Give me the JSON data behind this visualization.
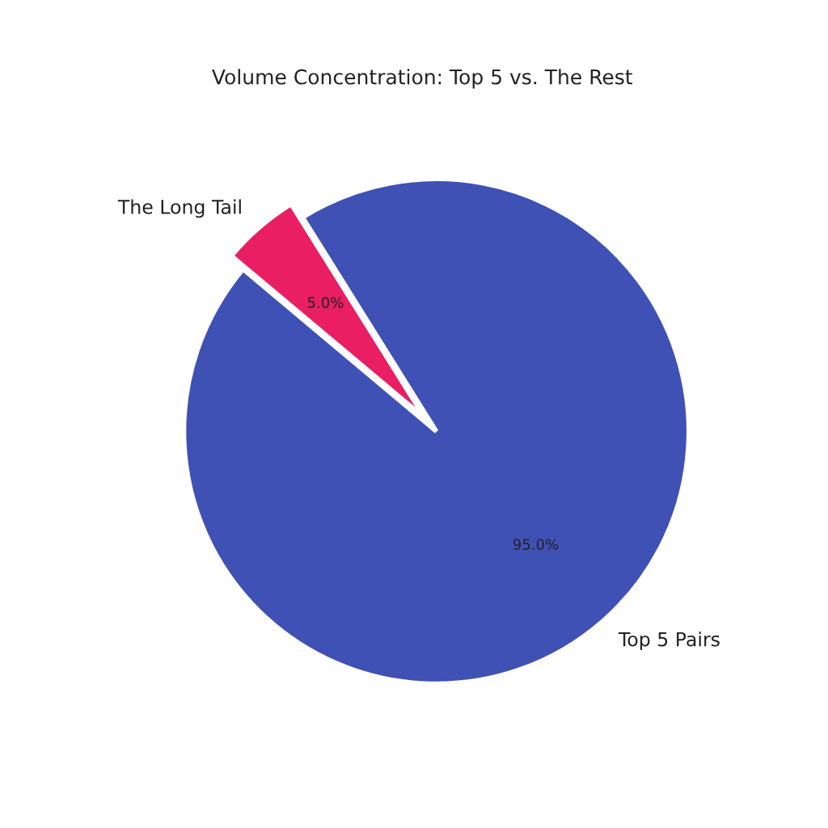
{
  "chart_data": {
    "type": "pie",
    "title": "Volume Concentration: Top 5 vs. The Rest",
    "categories": [
      "Top 5 Pairs",
      "The Long Tail"
    ],
    "values": [
      95,
      5
    ],
    "colors": [
      "#3f51b5",
      "#e91e63"
    ],
    "value_labels": [
      "95.0%",
      "5.0%"
    ]
  }
}
